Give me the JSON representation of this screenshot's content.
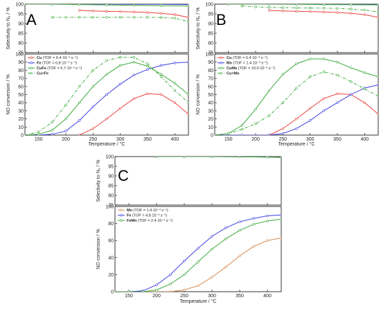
{
  "chart_data": [
    {
      "type": "line",
      "panel_letter": "A",
      "xlabel": "Temperature / °C",
      "ylabel_top": "Selectivity to N₂ / %",
      "ylabel_bottom": "NO conversion / %",
      "xlim": [
        125,
        425
      ],
      "xticks": [
        150,
        200,
        250,
        300,
        350,
        400
      ],
      "ylim_top": [
        75,
        100
      ],
      "yticks_top": [
        75,
        80,
        85,
        90,
        95,
        100
      ],
      "ylim_bottom": [
        0,
        100
      ],
      "yticks_bottom": [
        0,
        10,
        20,
        30,
        40,
        50,
        60,
        70,
        80,
        90,
        100
      ],
      "legend_position": "top-left",
      "series": [
        {
          "name": "Cu",
          "legend": "(TOF = 6.4·10⁻³ s⁻¹)",
          "color": "#e8403c",
          "style": "solid",
          "marker": "open-circle",
          "conversion": [
            [
              225,
              0
            ],
            [
              250,
              8
            ],
            [
              275,
              20
            ],
            [
              300,
              33
            ],
            [
              325,
              45
            ],
            [
              350,
              51
            ],
            [
              375,
              50
            ],
            [
              400,
              40
            ],
            [
              425,
              26
            ]
          ],
          "selectivity": [
            [
              225,
              96.8
            ],
            [
              250,
              96.5
            ],
            [
              275,
              96.3
            ],
            [
              300,
              96.2
            ],
            [
              325,
              96.0
            ],
            [
              350,
              95.7
            ],
            [
              375,
              95.3
            ],
            [
              400,
              94.6
            ],
            [
              425,
              93.2
            ]
          ]
        },
        {
          "name": "Fe",
          "legend": "(TOF = 6.8·10⁻³ s⁻¹)",
          "color": "#3d3de0",
          "style": "solid",
          "marker": "open-circle",
          "conversion": [
            [
              125,
              0
            ],
            [
              150,
              0
            ],
            [
              175,
              1
            ],
            [
              200,
              5
            ],
            [
              225,
              18
            ],
            [
              250,
              35
            ],
            [
              275,
              50
            ],
            [
              300,
              63
            ],
            [
              325,
              74
            ],
            [
              350,
              81
            ],
            [
              375,
              86
            ],
            [
              400,
              89
            ],
            [
              425,
              90
            ]
          ],
          "selectivity": [
            [
              125,
              100
            ],
            [
              175,
              100
            ],
            [
              225,
              100
            ],
            [
              275,
              100
            ],
            [
              325,
              99.9
            ],
            [
              375,
              99.9
            ],
            [
              425,
              99.8
            ]
          ]
        },
        {
          "name": "CuFe",
          "legend": "(TOF = 5.7·10⁻³ s⁻¹)",
          "color": "#3aa83a",
          "style": "solid",
          "marker": "open-circle",
          "conversion": [
            [
              125,
              0
            ],
            [
              150,
              1
            ],
            [
              175,
              6
            ],
            [
              200,
              20
            ],
            [
              225,
              40
            ],
            [
              250,
              60
            ],
            [
              275,
              75
            ],
            [
              300,
              86
            ],
            [
              325,
              90
            ],
            [
              350,
              85
            ],
            [
              375,
              75
            ],
            [
              400,
              64
            ],
            [
              425,
              50
            ]
          ],
          "selectivity": [
            [
              125,
              100
            ],
            [
              175,
              100
            ],
            [
              225,
              99.8
            ],
            [
              275,
              99.6
            ],
            [
              325,
              99.4
            ],
            [
              375,
              99.2
            ],
            [
              425,
              99.0
            ]
          ]
        },
        {
          "name": "Cu+Fe",
          "legend": "",
          "color": "#3aa83a",
          "style": "dash-dot",
          "marker": "open-circle",
          "conversion": [
            [
              125,
              0
            ],
            [
              150,
              4
            ],
            [
              175,
              16
            ],
            [
              200,
              37
            ],
            [
              225,
              60
            ],
            [
              250,
              80
            ],
            [
              275,
              92
            ],
            [
              300,
              96
            ],
            [
              325,
              96
            ],
            [
              350,
              88
            ],
            [
              375,
              72
            ],
            [
              400,
              55
            ],
            [
              425,
              40
            ]
          ],
          "selectivity": [
            [
              175,
              93.2
            ],
            [
              200,
              93.2
            ],
            [
              225,
              93.2
            ],
            [
              250,
              93.2
            ],
            [
              275,
              93.2
            ],
            [
              300,
              93.2
            ],
            [
              325,
              93.2
            ],
            [
              350,
              93.2
            ],
            [
              375,
              93.1
            ],
            [
              400,
              92.8
            ],
            [
              425,
              91.0
            ]
          ]
        }
      ]
    },
    {
      "type": "line",
      "panel_letter": "B",
      "xlabel": "Temperature / °C",
      "ylabel_top": "Selectivity to N₂ / %",
      "ylabel_bottom": "NO conversion / %",
      "xlim": [
        125,
        425
      ],
      "xticks": [
        150,
        200,
        250,
        300,
        350,
        400
      ],
      "ylim_top": [
        75,
        100
      ],
      "yticks_top": [
        75,
        80,
        85,
        90,
        95,
        100
      ],
      "ylim_bottom": [
        0,
        100
      ],
      "yticks_bottom": [
        0,
        10,
        20,
        30,
        40,
        50,
        60,
        70,
        80,
        90,
        100
      ],
      "legend_position": "top-left",
      "series": [
        {
          "name": "Cu",
          "legend": "(TOF = 6.4·10⁻³ s⁻¹)",
          "color": "#e8403c",
          "style": "solid",
          "marker": "open-circle",
          "conversion": [
            [
              225,
              0
            ],
            [
              250,
              8
            ],
            [
              275,
              20
            ],
            [
              300,
              33
            ],
            [
              325,
              45
            ],
            [
              350,
              51
            ],
            [
              375,
              50
            ],
            [
              400,
              40
            ],
            [
              425,
              26
            ]
          ],
          "selectivity": [
            [
              225,
              96.8
            ],
            [
              250,
              96.5
            ],
            [
              275,
              96.3
            ],
            [
              300,
              96.2
            ],
            [
              325,
              96.0
            ],
            [
              350,
              95.7
            ],
            [
              375,
              95.3
            ],
            [
              400,
              94.6
            ],
            [
              425,
              93.2
            ]
          ]
        },
        {
          "name": "Mn",
          "legend": "(TOF = 1.4·10⁻³ s⁻¹)",
          "color": "#3d3de0",
          "style": "solid",
          "marker": "open-circle",
          "conversion": [
            [
              125,
              0
            ],
            [
              175,
              0
            ],
            [
              225,
              0
            ],
            [
              250,
              2
            ],
            [
              275,
              8
            ],
            [
              300,
              18
            ],
            [
              325,
              30
            ],
            [
              350,
              40
            ],
            [
              375,
              50
            ],
            [
              400,
              58
            ],
            [
              425,
              62
            ]
          ],
          "selectivity": [
            [
              175,
              100
            ],
            [
              225,
              100
            ],
            [
              275,
              100
            ],
            [
              325,
              100
            ],
            [
              375,
              99.8
            ],
            [
              425,
              99.7
            ]
          ]
        },
        {
          "name": "CuMn",
          "legend": "(TOF = 10.0·10⁻³ s⁻¹)",
          "color": "#3aa83a",
          "style": "solid",
          "marker": "open-circle",
          "conversion": [
            [
              125,
              0
            ],
            [
              150,
              2
            ],
            [
              175,
              12
            ],
            [
              200,
              32
            ],
            [
              225,
              55
            ],
            [
              250,
              75
            ],
            [
              275,
              88
            ],
            [
              300,
              94
            ],
            [
              325,
              94
            ],
            [
              350,
              90
            ],
            [
              375,
              83
            ],
            [
              400,
              77
            ],
            [
              425,
              72
            ]
          ],
          "selectivity": [
            [
              150,
              100
            ],
            [
              175,
              100
            ],
            [
              225,
              100
            ],
            [
              275,
              99.9
            ],
            [
              325,
              99.8
            ],
            [
              375,
              99.7
            ],
            [
              425,
              99.6
            ]
          ]
        },
        {
          "name": "Cu+Mn",
          "legend": "",
          "color": "#3aa83a",
          "style": "dash-dot",
          "marker": "open-circle",
          "conversion": [
            [
              125,
              0
            ],
            [
              150,
              2
            ],
            [
              175,
              7
            ],
            [
              200,
              14
            ],
            [
              225,
              24
            ],
            [
              250,
              40
            ],
            [
              275,
              58
            ],
            [
              300,
              72
            ],
            [
              325,
              78
            ],
            [
              350,
              74
            ],
            [
              375,
              66
            ],
            [
              400,
              57
            ],
            [
              425,
              48
            ]
          ],
          "selectivity": [
            [
              175,
              99.0
            ],
            [
              200,
              98.6
            ],
            [
              225,
              98.3
            ],
            [
              250,
              98.2
            ],
            [
              275,
              98.1
            ],
            [
              300,
              98.0
            ],
            [
              325,
              98.0
            ],
            [
              350,
              97.8
            ],
            [
              375,
              97.5
            ],
            [
              400,
              97.0
            ],
            [
              425,
              96.0
            ]
          ]
        }
      ]
    },
    {
      "type": "line",
      "panel_letter": "C",
      "xlabel": "Temperature / °C",
      "ylabel_top": "Selectivity to N₂ / %",
      "ylabel_bottom": "NO conversion / %",
      "xlim": [
        125,
        425
      ],
      "xticks": [
        150,
        200,
        250,
        300,
        350,
        400
      ],
      "ylim_top": [
        75,
        100
      ],
      "yticks_top": [
        75,
        80,
        85,
        90,
        95,
        100
      ],
      "ylim_bottom": [
        0,
        100
      ],
      "yticks_bottom": [
        0,
        20,
        40,
        60,
        80,
        100
      ],
      "legend_position": "top-left",
      "series": [
        {
          "name": "Mn",
          "legend": "(TOF = 1.4·10⁻³ s⁻¹)",
          "color": "#d98a50",
          "style": "solid",
          "marker": "open-circle",
          "conversion": [
            [
              125,
              0
            ],
            [
              150,
              0
            ],
            [
              175,
              0
            ],
            [
              200,
              0
            ],
            [
              225,
              0
            ],
            [
              250,
              2
            ],
            [
              275,
              7
            ],
            [
              300,
              17
            ],
            [
              325,
              29
            ],
            [
              350,
              42
            ],
            [
              375,
              53
            ],
            [
              400,
              60
            ],
            [
              425,
              63
            ]
          ],
          "selectivity": [
            [
              200,
              100
            ],
            [
              250,
              100
            ],
            [
              300,
              100
            ],
            [
              350,
              99.9
            ],
            [
              400,
              99.8
            ],
            [
              425,
              99.7
            ]
          ]
        },
        {
          "name": "Fe",
          "legend": "(TOF = 4.8·10⁻³ s⁻¹)",
          "color": "#3d3de0",
          "style": "solid",
          "marker": "open-circle",
          "conversion": [
            [
              125,
              0
            ],
            [
              150,
              0
            ],
            [
              175,
              1
            ],
            [
              200,
              8
            ],
            [
              225,
              20
            ],
            [
              250,
              36
            ],
            [
              275,
              51
            ],
            [
              300,
              65
            ],
            [
              325,
              75
            ],
            [
              350,
              82
            ],
            [
              375,
              86
            ],
            [
              400,
              89
            ],
            [
              425,
              90
            ]
          ],
          "selectivity": [
            [
              200,
              100
            ],
            [
              250,
              100
            ],
            [
              300,
              100
            ],
            [
              350,
              99.9
            ],
            [
              400,
              99.8
            ],
            [
              425,
              99.6
            ]
          ]
        },
        {
          "name": "FeMn",
          "legend": "(TOF = 2.4·10⁻³ s⁻¹)",
          "color": "#3aa83a",
          "style": "solid",
          "marker": "open-circle",
          "conversion": [
            [
              125,
              0
            ],
            [
              150,
              0
            ],
            [
              175,
              0
            ],
            [
              200,
              2
            ],
            [
              225,
              9
            ],
            [
              250,
              20
            ],
            [
              275,
              35
            ],
            [
              300,
              50
            ],
            [
              325,
              62
            ],
            [
              350,
              72
            ],
            [
              375,
              79
            ],
            [
              400,
              83
            ],
            [
              425,
              85
            ]
          ],
          "selectivity": [
            [
              200,
              100
            ],
            [
              250,
              100
            ],
            [
              300,
              100
            ],
            [
              350,
              99.9
            ],
            [
              400,
              99.7
            ],
            [
              425,
              99.5
            ]
          ]
        }
      ]
    }
  ]
}
